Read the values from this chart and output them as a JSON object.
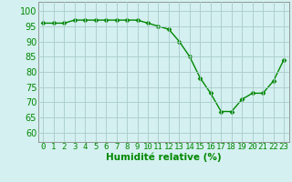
{
  "x": [
    0,
    1,
    2,
    3,
    4,
    5,
    6,
    7,
    8,
    9,
    10,
    11,
    12,
    13,
    14,
    15,
    16,
    17,
    18,
    19,
    20,
    21,
    22,
    23
  ],
  "y": [
    96,
    96,
    96,
    97,
    97,
    97,
    97,
    97,
    97,
    97,
    96,
    95,
    94,
    90,
    85,
    78,
    73,
    67,
    67,
    71,
    73,
    73,
    77,
    84
  ],
  "line_color": "#008800",
  "marker": "D",
  "marker_size": 2.5,
  "bg_color": "#d4f0f0",
  "grid_color": "#aacccc",
  "xlabel": "Humidité relative (%)",
  "ylabel_ticks": [
    60,
    65,
    70,
    75,
    80,
    85,
    90,
    95,
    100
  ],
  "ylim": [
    57,
    103
  ],
  "xlim": [
    -0.5,
    23.5
  ],
  "xlabel_fontsize": 7.5,
  "tick_fontsize": 7,
  "xlabel_color": "#008800"
}
